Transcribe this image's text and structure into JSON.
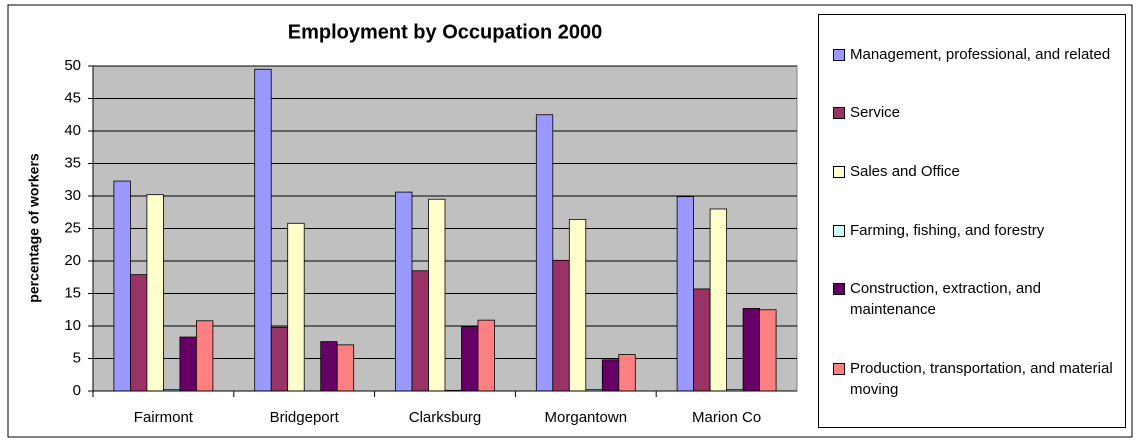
{
  "chart_data": {
    "type": "bar",
    "title": "Employment by Occupation 2000",
    "y_label": "percentage of workers",
    "categories": [
      "Fairmont",
      "Bridgeport",
      "Clarksburg",
      "Morgantown",
      "Marion Co"
    ],
    "series": [
      {
        "name": "Management, professional, and related",
        "color": "#9999ff",
        "values": [
          32.3,
          49.5,
          30.6,
          42.5,
          29.9
        ]
      },
      {
        "name": "Service",
        "color": "#993366",
        "values": [
          17.9,
          9.8,
          18.5,
          20.1,
          15.7
        ]
      },
      {
        "name": "Sales and Office",
        "color": "#ffffcc",
        "values": [
          30.2,
          25.8,
          29.5,
          26.4,
          28.0
        ]
      },
      {
        "name": "Farming, fishing, and forestry",
        "color": "#ccffff",
        "values": [
          0.2,
          0,
          0.1,
          0.2,
          0.2
        ]
      },
      {
        "name": "Construction, extraction, and maintenance",
        "color": "#660066",
        "values": [
          8.3,
          7.6,
          9.9,
          4.8,
          12.7
        ]
      },
      {
        "name": "Production, transportation, and material moving",
        "color": "#ff8080",
        "values": [
          10.8,
          7.1,
          10.9,
          5.6,
          12.5
        ]
      }
    ],
    "ylim": [
      0,
      50
    ],
    "yticks": [
      0,
      5,
      10,
      15,
      20,
      25,
      30,
      35,
      40,
      45,
      50
    ],
    "grid": true,
    "legend": "right"
  }
}
